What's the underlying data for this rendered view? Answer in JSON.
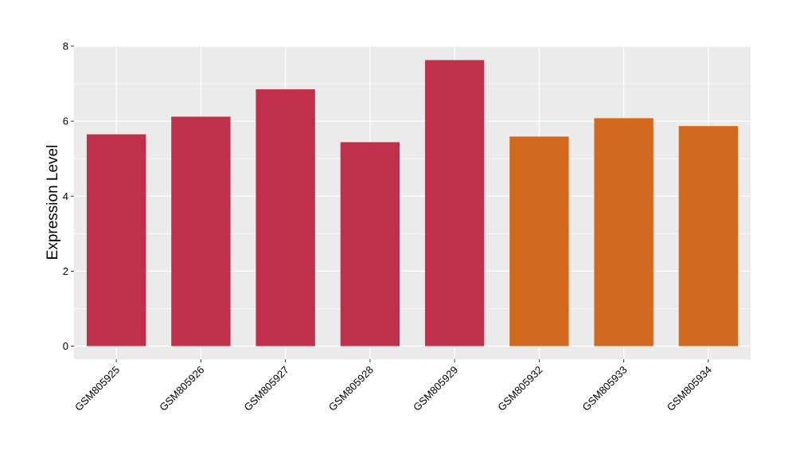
{
  "chart_data": {
    "type": "bar",
    "title": "",
    "xlabel": "",
    "ylabel": "Expression Level",
    "ylim": [
      -0.35,
      8
    ],
    "yticks": [
      0,
      2,
      4,
      6,
      8
    ],
    "grid": true,
    "categories": [
      "GSM805925",
      "GSM805926",
      "GSM805927",
      "GSM805928",
      "GSM805929",
      "GSM805932",
      "GSM805933",
      "GSM805934"
    ],
    "values": [
      5.65,
      6.12,
      6.85,
      5.44,
      7.63,
      5.59,
      6.08,
      5.87
    ],
    "groups": [
      "a",
      "a",
      "a",
      "a",
      "a",
      "b",
      "b",
      "b"
    ],
    "group_colors": {
      "a": "#C0304A",
      "b": "#D2691E"
    },
    "panel_background": "#EBEBEB",
    "gridline_color": "#FFFFFF"
  }
}
